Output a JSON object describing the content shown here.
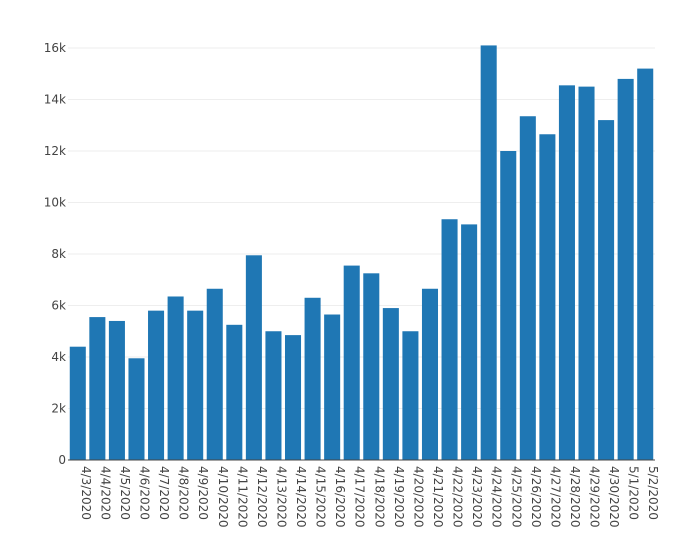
{
  "chart_data": {
    "type": "bar",
    "title": "",
    "xlabel": "",
    "ylabel": "",
    "ylim": [
      0,
      16000
    ],
    "yticks": [
      {
        "value": 0,
        "label": "0"
      },
      {
        "value": 2000,
        "label": "2k"
      },
      {
        "value": 4000,
        "label": "4k"
      },
      {
        "value": 6000,
        "label": "6k"
      },
      {
        "value": 8000,
        "label": "8k"
      },
      {
        "value": 10000,
        "label": "10k"
      },
      {
        "value": 12000,
        "label": "12k"
      },
      {
        "value": 14000,
        "label": "14k"
      },
      {
        "value": 16000,
        "label": "16k"
      }
    ],
    "grid": true,
    "bar_color": "#1f77b4",
    "categories": [
      "4/3/2020",
      "4/4/2020",
      "4/5/2020",
      "4/6/2020",
      "4/7/2020",
      "4/8/2020",
      "4/9/2020",
      "4/10/2020",
      "4/11/2020",
      "4/12/2020",
      "4/13/2020",
      "4/14/2020",
      "4/15/2020",
      "4/16/2020",
      "4/17/2020",
      "4/18/2020",
      "4/19/2020",
      "4/20/2020",
      "4/21/2020",
      "4/22/2020",
      "4/23/2020",
      "4/24/2020",
      "4/25/2020",
      "4/26/2020",
      "4/27/2020",
      "4/28/2020",
      "4/29/2020",
      "4/30/2020",
      "5/1/2020",
      "5/2/2020"
    ],
    "values": [
      4400,
      5550,
      5400,
      3950,
      5800,
      6350,
      5800,
      6650,
      5250,
      7950,
      5000,
      4850,
      6300,
      5650,
      7550,
      7250,
      5900,
      5000,
      6650,
      9350,
      9150,
      16100,
      12000,
      13350,
      12650,
      14550,
      14500,
      13200,
      14800,
      15200
    ]
  }
}
